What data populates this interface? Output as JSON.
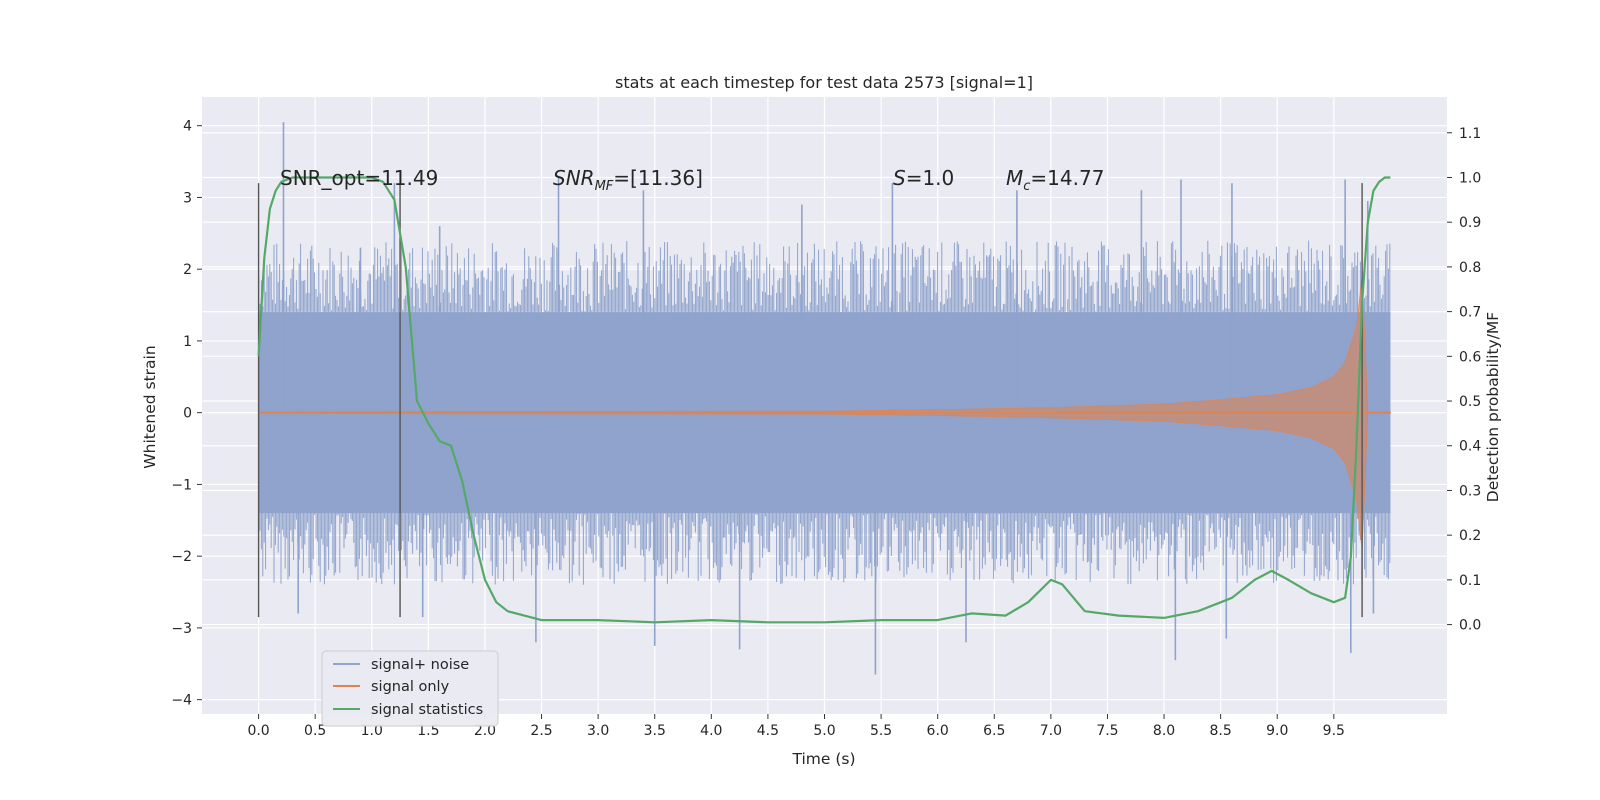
{
  "chart_data": {
    "type": "line",
    "title": "stats at each timestep for test data 2573 [signal=1]",
    "xlabel": "Time (s)",
    "ylabel": "Whitened strain",
    "ylabel_right": "Detection probability/MF",
    "xlim": [
      -0.5,
      10.5
    ],
    "ylim": [
      -4.2,
      4.4
    ],
    "ylim_right": [
      -0.2,
      1.18
    ],
    "x_ticks": [
      0.0,
      0.5,
      1.0,
      1.5,
      2.0,
      2.5,
      3.0,
      3.5,
      4.0,
      4.5,
      5.0,
      5.5,
      6.0,
      6.5,
      7.0,
      7.5,
      8.0,
      8.5,
      9.0,
      9.5
    ],
    "x_tick_labels": [
      "0.0",
      "0.5",
      "1.0",
      "1.5",
      "2.0",
      "2.5",
      "3.0",
      "3.5",
      "4.0",
      "4.5",
      "5.0",
      "5.5",
      "6.0",
      "6.5",
      "7.0",
      "7.5",
      "8.0",
      "8.5",
      "9.0",
      "9.5"
    ],
    "y_ticks": [
      -4,
      -3,
      -2,
      -1,
      0,
      1,
      2,
      3,
      4
    ],
    "y_tick_labels": [
      "−4",
      "−3",
      "−2",
      "−1",
      "0",
      "1",
      "2",
      "3",
      "4"
    ],
    "y_right_ticks": [
      0.0,
      0.1,
      0.2,
      0.3,
      0.4,
      0.5,
      0.6,
      0.7,
      0.8,
      0.9,
      1.0,
      1.1
    ],
    "y_right_tick_labels": [
      "0.0",
      "0.1",
      "0.2",
      "0.3",
      "0.4",
      "0.5",
      "0.6",
      "0.7",
      "0.8",
      "0.9",
      "1.0",
      "1.1"
    ],
    "grid": true,
    "legend_placement": "lower-left",
    "annotations": {
      "snr_opt": "SNR_opt=11.49",
      "snr_mf_base": "SNR",
      "snr_mf_sub": "MF",
      "snr_mf_rest": "=[11.36]",
      "s_sym": "S",
      "s_rest": "=1.0",
      "mc_base": "M",
      "mc_sub": "c",
      "mc_rest": "=14.77"
    },
    "vertical_markers_x": [
      0.0,
      1.25,
      9.75
    ],
    "colors": {
      "noise": "#8fa3cc",
      "signal": "#dd8452",
      "stat": "#55a868",
      "marker": "#555555",
      "plot_bg": "#eaeaf2",
      "grid": "#ffffff"
    },
    "series": [
      {
        "name": "signal+ noise",
        "axis": "left",
        "x_range": [
          0.0,
          10.0
        ],
        "envelope_upper": 1.4,
        "envelope_lower": -1.4,
        "spikes": [
          {
            "x": 0.22,
            "y": 4.05
          },
          {
            "x": 0.9,
            "y": 2.3
          },
          {
            "x": 1.2,
            "y": 3.2
          },
          {
            "x": 1.6,
            "y": 2.6
          },
          {
            "x": 2.65,
            "y": 3.3
          },
          {
            "x": 3.4,
            "y": 3.1
          },
          {
            "x": 4.8,
            "y": 2.9
          },
          {
            "x": 5.6,
            "y": 3.2
          },
          {
            "x": 6.7,
            "y": 3.1
          },
          {
            "x": 7.8,
            "y": 3.1
          },
          {
            "x": 8.15,
            "y": 3.25
          },
          {
            "x": 8.6,
            "y": 3.2
          },
          {
            "x": 9.6,
            "y": 3.25
          },
          {
            "x": 9.8,
            "y": 2.95
          },
          {
            "x": 0.35,
            "y": -2.8
          },
          {
            "x": 1.45,
            "y": -2.85
          },
          {
            "x": 2.45,
            "y": -3.2
          },
          {
            "x": 3.5,
            "y": -3.25
          },
          {
            "x": 4.25,
            "y": -3.3
          },
          {
            "x": 5.45,
            "y": -3.65
          },
          {
            "x": 6.25,
            "y": -3.2
          },
          {
            "x": 8.1,
            "y": -3.45
          },
          {
            "x": 8.55,
            "y": -3.15
          },
          {
            "x": 9.65,
            "y": -3.35
          },
          {
            "x": 9.85,
            "y": -2.8
          }
        ]
      },
      {
        "name": "signal only",
        "axis": "left",
        "x": [
          0.0,
          5.0,
          6.0,
          7.0,
          8.0,
          8.5,
          9.0,
          9.3,
          9.5,
          9.6,
          9.7,
          9.75,
          9.8,
          10.0
        ],
        "amplitude": [
          0.01,
          0.02,
          0.04,
          0.07,
          0.12,
          0.18,
          0.25,
          0.35,
          0.5,
          0.7,
          1.2,
          1.9,
          0.01,
          0.01
        ]
      },
      {
        "name": "signal statistics",
        "axis": "right",
        "x": [
          0.0,
          0.05,
          0.1,
          0.15,
          0.2,
          0.3,
          0.5,
          0.8,
          1.0,
          1.1,
          1.2,
          1.3,
          1.4,
          1.5,
          1.6,
          1.7,
          1.8,
          1.9,
          2.0,
          2.1,
          2.2,
          2.5,
          3.0,
          3.5,
          4.0,
          4.5,
          5.0,
          5.5,
          6.0,
          6.3,
          6.6,
          6.8,
          7.0,
          7.1,
          7.3,
          7.6,
          8.0,
          8.3,
          8.6,
          8.8,
          8.95,
          9.1,
          9.3,
          9.5,
          9.6,
          9.65,
          9.7,
          9.75,
          9.8,
          9.85,
          9.9,
          9.95,
          10.0
        ],
        "values": [
          0.6,
          0.82,
          0.93,
          0.97,
          0.99,
          1.0,
          1.0,
          1.0,
          1.0,
          0.99,
          0.95,
          0.8,
          0.5,
          0.45,
          0.41,
          0.4,
          0.32,
          0.2,
          0.1,
          0.05,
          0.03,
          0.01,
          0.01,
          0.005,
          0.01,
          0.005,
          0.005,
          0.01,
          0.01,
          0.025,
          0.02,
          0.05,
          0.1,
          0.09,
          0.03,
          0.02,
          0.015,
          0.03,
          0.06,
          0.1,
          0.12,
          0.1,
          0.07,
          0.05,
          0.06,
          0.15,
          0.4,
          0.72,
          0.9,
          0.97,
          0.99,
          1.0,
          1.0
        ]
      }
    ]
  }
}
